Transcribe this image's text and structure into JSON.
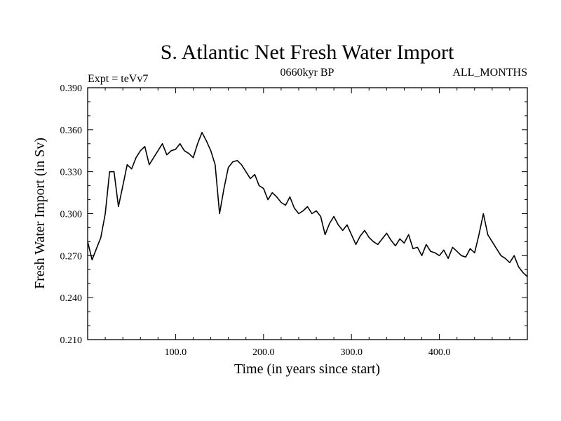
{
  "chart_data": {
    "type": "line",
    "title": "S. Atlantic Net Fresh Water Import",
    "subtitle_left": "Expt = teVv7",
    "subtitle_center": "0660kyr BP",
    "subtitle_right": "ALL_MONTHS",
    "xlabel": "Time (in years since start)",
    "ylabel": "Fresh Water Import (in Sv)",
    "xlim": [
      0,
      500
    ],
    "ylim": [
      0.21,
      0.39
    ],
    "xticks": [
      100,
      200,
      300,
      400
    ],
    "xtick_labels": [
      "100.0",
      "200.0",
      "300.0",
      "400.0"
    ],
    "yticks": [
      0.21,
      0.24,
      0.27,
      0.3,
      0.33,
      0.36,
      0.39
    ],
    "ytick_labels": [
      "0.210",
      "0.240",
      "0.270",
      "0.300",
      "0.330",
      "0.360",
      "0.390"
    ],
    "grid": false,
    "series": [
      {
        "color": "#000000",
        "x": [
          0,
          5,
          10,
          15,
          20,
          25,
          30,
          35,
          40,
          45,
          50,
          55,
          60,
          65,
          70,
          75,
          80,
          85,
          90,
          95,
          100,
          105,
          110,
          115,
          120,
          125,
          130,
          135,
          140,
          145,
          150,
          155,
          160,
          165,
          170,
          175,
          180,
          185,
          190,
          195,
          200,
          205,
          210,
          215,
          220,
          225,
          230,
          235,
          240,
          245,
          250,
          255,
          260,
          265,
          270,
          275,
          280,
          285,
          290,
          295,
          300,
          305,
          310,
          315,
          320,
          325,
          330,
          335,
          340,
          345,
          350,
          355,
          360,
          365,
          370,
          375,
          380,
          385,
          390,
          395,
          400,
          405,
          410,
          415,
          420,
          425,
          430,
          435,
          440,
          445,
          450,
          455,
          460,
          465,
          470,
          475,
          480,
          485,
          490,
          495,
          500
        ],
        "y": [
          0.28,
          0.267,
          0.275,
          0.283,
          0.3,
          0.33,
          0.33,
          0.305,
          0.32,
          0.335,
          0.332,
          0.34,
          0.345,
          0.348,
          0.335,
          0.34,
          0.345,
          0.35,
          0.342,
          0.345,
          0.346,
          0.35,
          0.345,
          0.343,
          0.34,
          0.35,
          0.358,
          0.352,
          0.345,
          0.335,
          0.3,
          0.318,
          0.333,
          0.337,
          0.338,
          0.335,
          0.33,
          0.325,
          0.328,
          0.32,
          0.318,
          0.31,
          0.315,
          0.312,
          0.308,
          0.306,
          0.312,
          0.304,
          0.3,
          0.302,
          0.305,
          0.3,
          0.302,
          0.298,
          0.285,
          0.293,
          0.298,
          0.292,
          0.288,
          0.292,
          0.285,
          0.278,
          0.284,
          0.288,
          0.283,
          0.28,
          0.278,
          0.282,
          0.286,
          0.281,
          0.277,
          0.282,
          0.279,
          0.285,
          0.275,
          0.276,
          0.27,
          0.278,
          0.273,
          0.272,
          0.27,
          0.274,
          0.268,
          0.276,
          0.273,
          0.27,
          0.269,
          0.275,
          0.272,
          0.285,
          0.3,
          0.285,
          0.28,
          0.275,
          0.27,
          0.268,
          0.265,
          0.27,
          0.262,
          0.258,
          0.255
        ]
      }
    ]
  }
}
